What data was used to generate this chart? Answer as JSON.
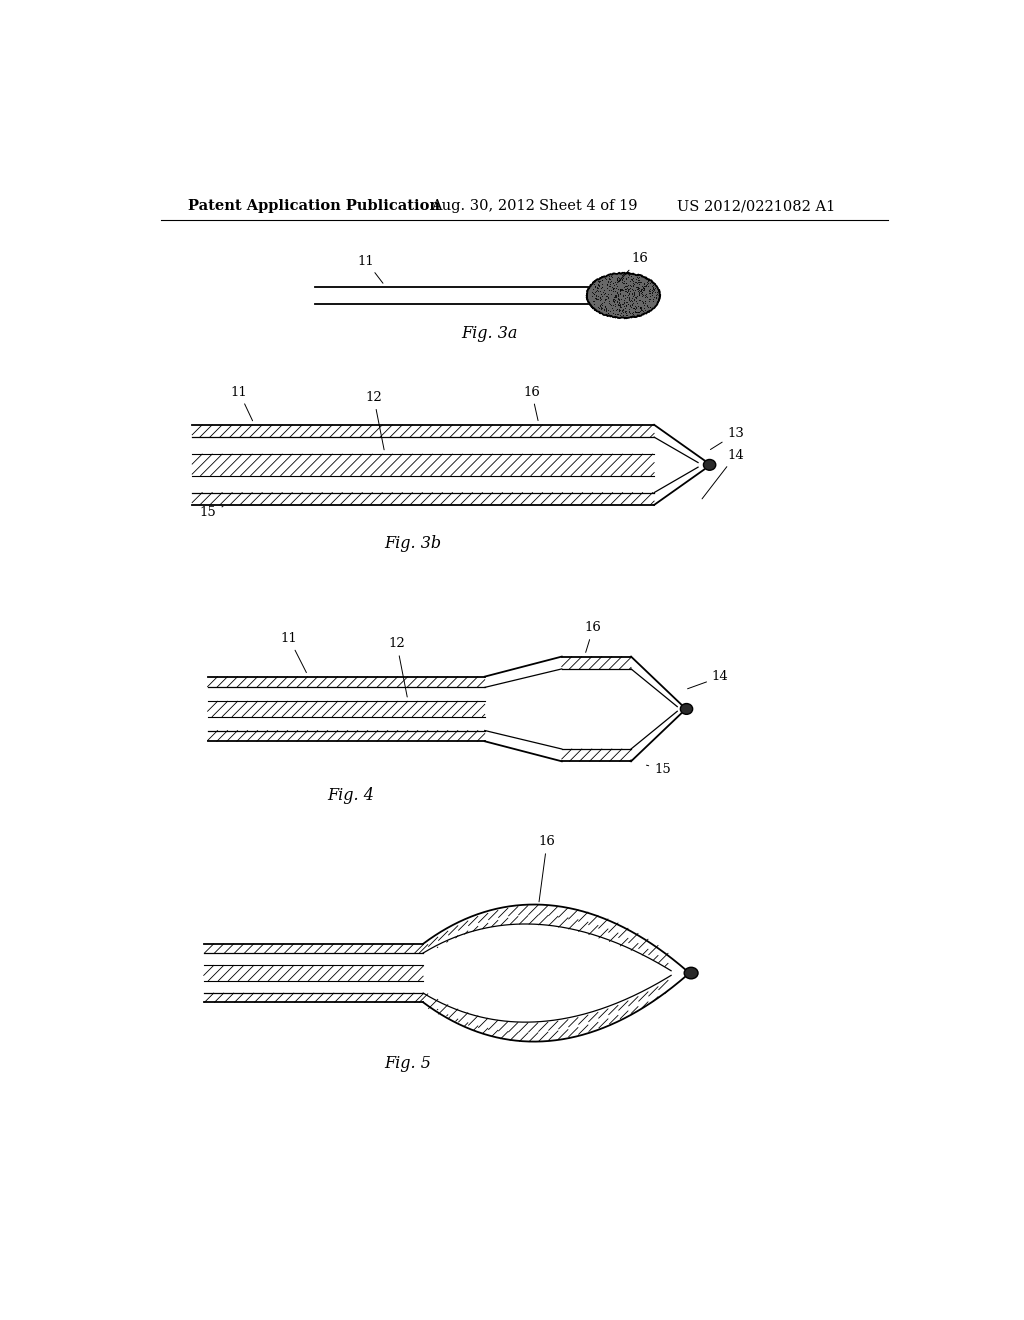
{
  "bg_color": "#ffffff",
  "header_text": "Patent Application Publication",
  "header_date": "Aug. 30, 2012",
  "header_sheet": "Sheet 4 of 19",
  "header_patent": "US 2012/0221082 A1",
  "fig3a_label": "Fig. 3a",
  "fig3b_label": "Fig. 3b",
  "fig4_label": "Fig. 4",
  "fig5_label": "Fig. 5"
}
